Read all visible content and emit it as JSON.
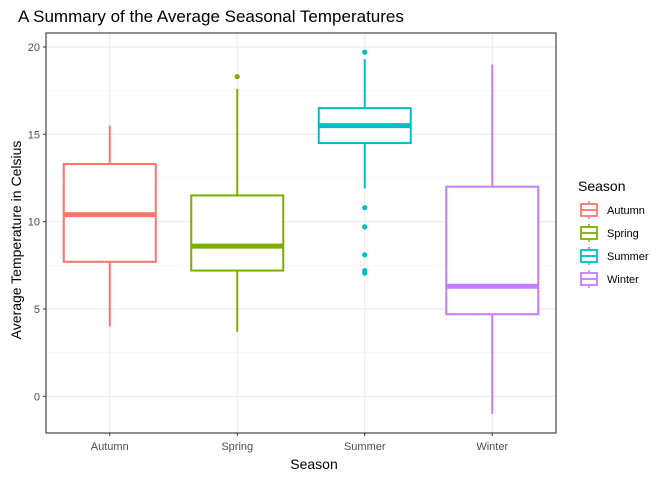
{
  "chart_data": {
    "type": "boxplot",
    "title": "A Summary of the Average Seasonal Temperatures",
    "xlabel": "Season",
    "ylabel": "Average Temperature in Celsius",
    "categories": [
      "Autumn",
      "Spring",
      "Summer",
      "Winter"
    ],
    "ylim": [
      -2.1,
      20.8
    ],
    "yticks": [
      0,
      5,
      10,
      15,
      20
    ],
    "ytick_labels": [
      "0",
      "5",
      "10",
      "15",
      "20"
    ],
    "grid": true,
    "legend": {
      "title": "Season",
      "position": "right",
      "entries": [
        "Autumn",
        "Spring",
        "Summer",
        "Winter"
      ]
    },
    "series": [
      {
        "name": "Autumn",
        "color": "#F8766D",
        "whisker_low": 4.0,
        "q1": 7.7,
        "median": 10.4,
        "q3": 13.3,
        "whisker_high": 15.5,
        "outliers": []
      },
      {
        "name": "Spring",
        "color": "#7CAE00",
        "whisker_low": 3.7,
        "q1": 7.2,
        "median": 8.6,
        "q3": 11.5,
        "whisker_high": 17.6,
        "outliers": [
          18.3
        ]
      },
      {
        "name": "Summer",
        "color": "#00BFC4",
        "whisker_low": 11.9,
        "q1": 14.5,
        "median": 15.5,
        "q3": 16.5,
        "whisker_high": 19.3,
        "outliers": [
          19.7,
          10.8,
          9.7,
          8.1,
          7.2,
          7.05
        ]
      },
      {
        "name": "Winter",
        "color": "#C77CFF",
        "whisker_low": -1.0,
        "q1": 4.7,
        "median": 6.3,
        "q3": 12.0,
        "whisker_high": 19.0,
        "outliers": []
      }
    ]
  }
}
